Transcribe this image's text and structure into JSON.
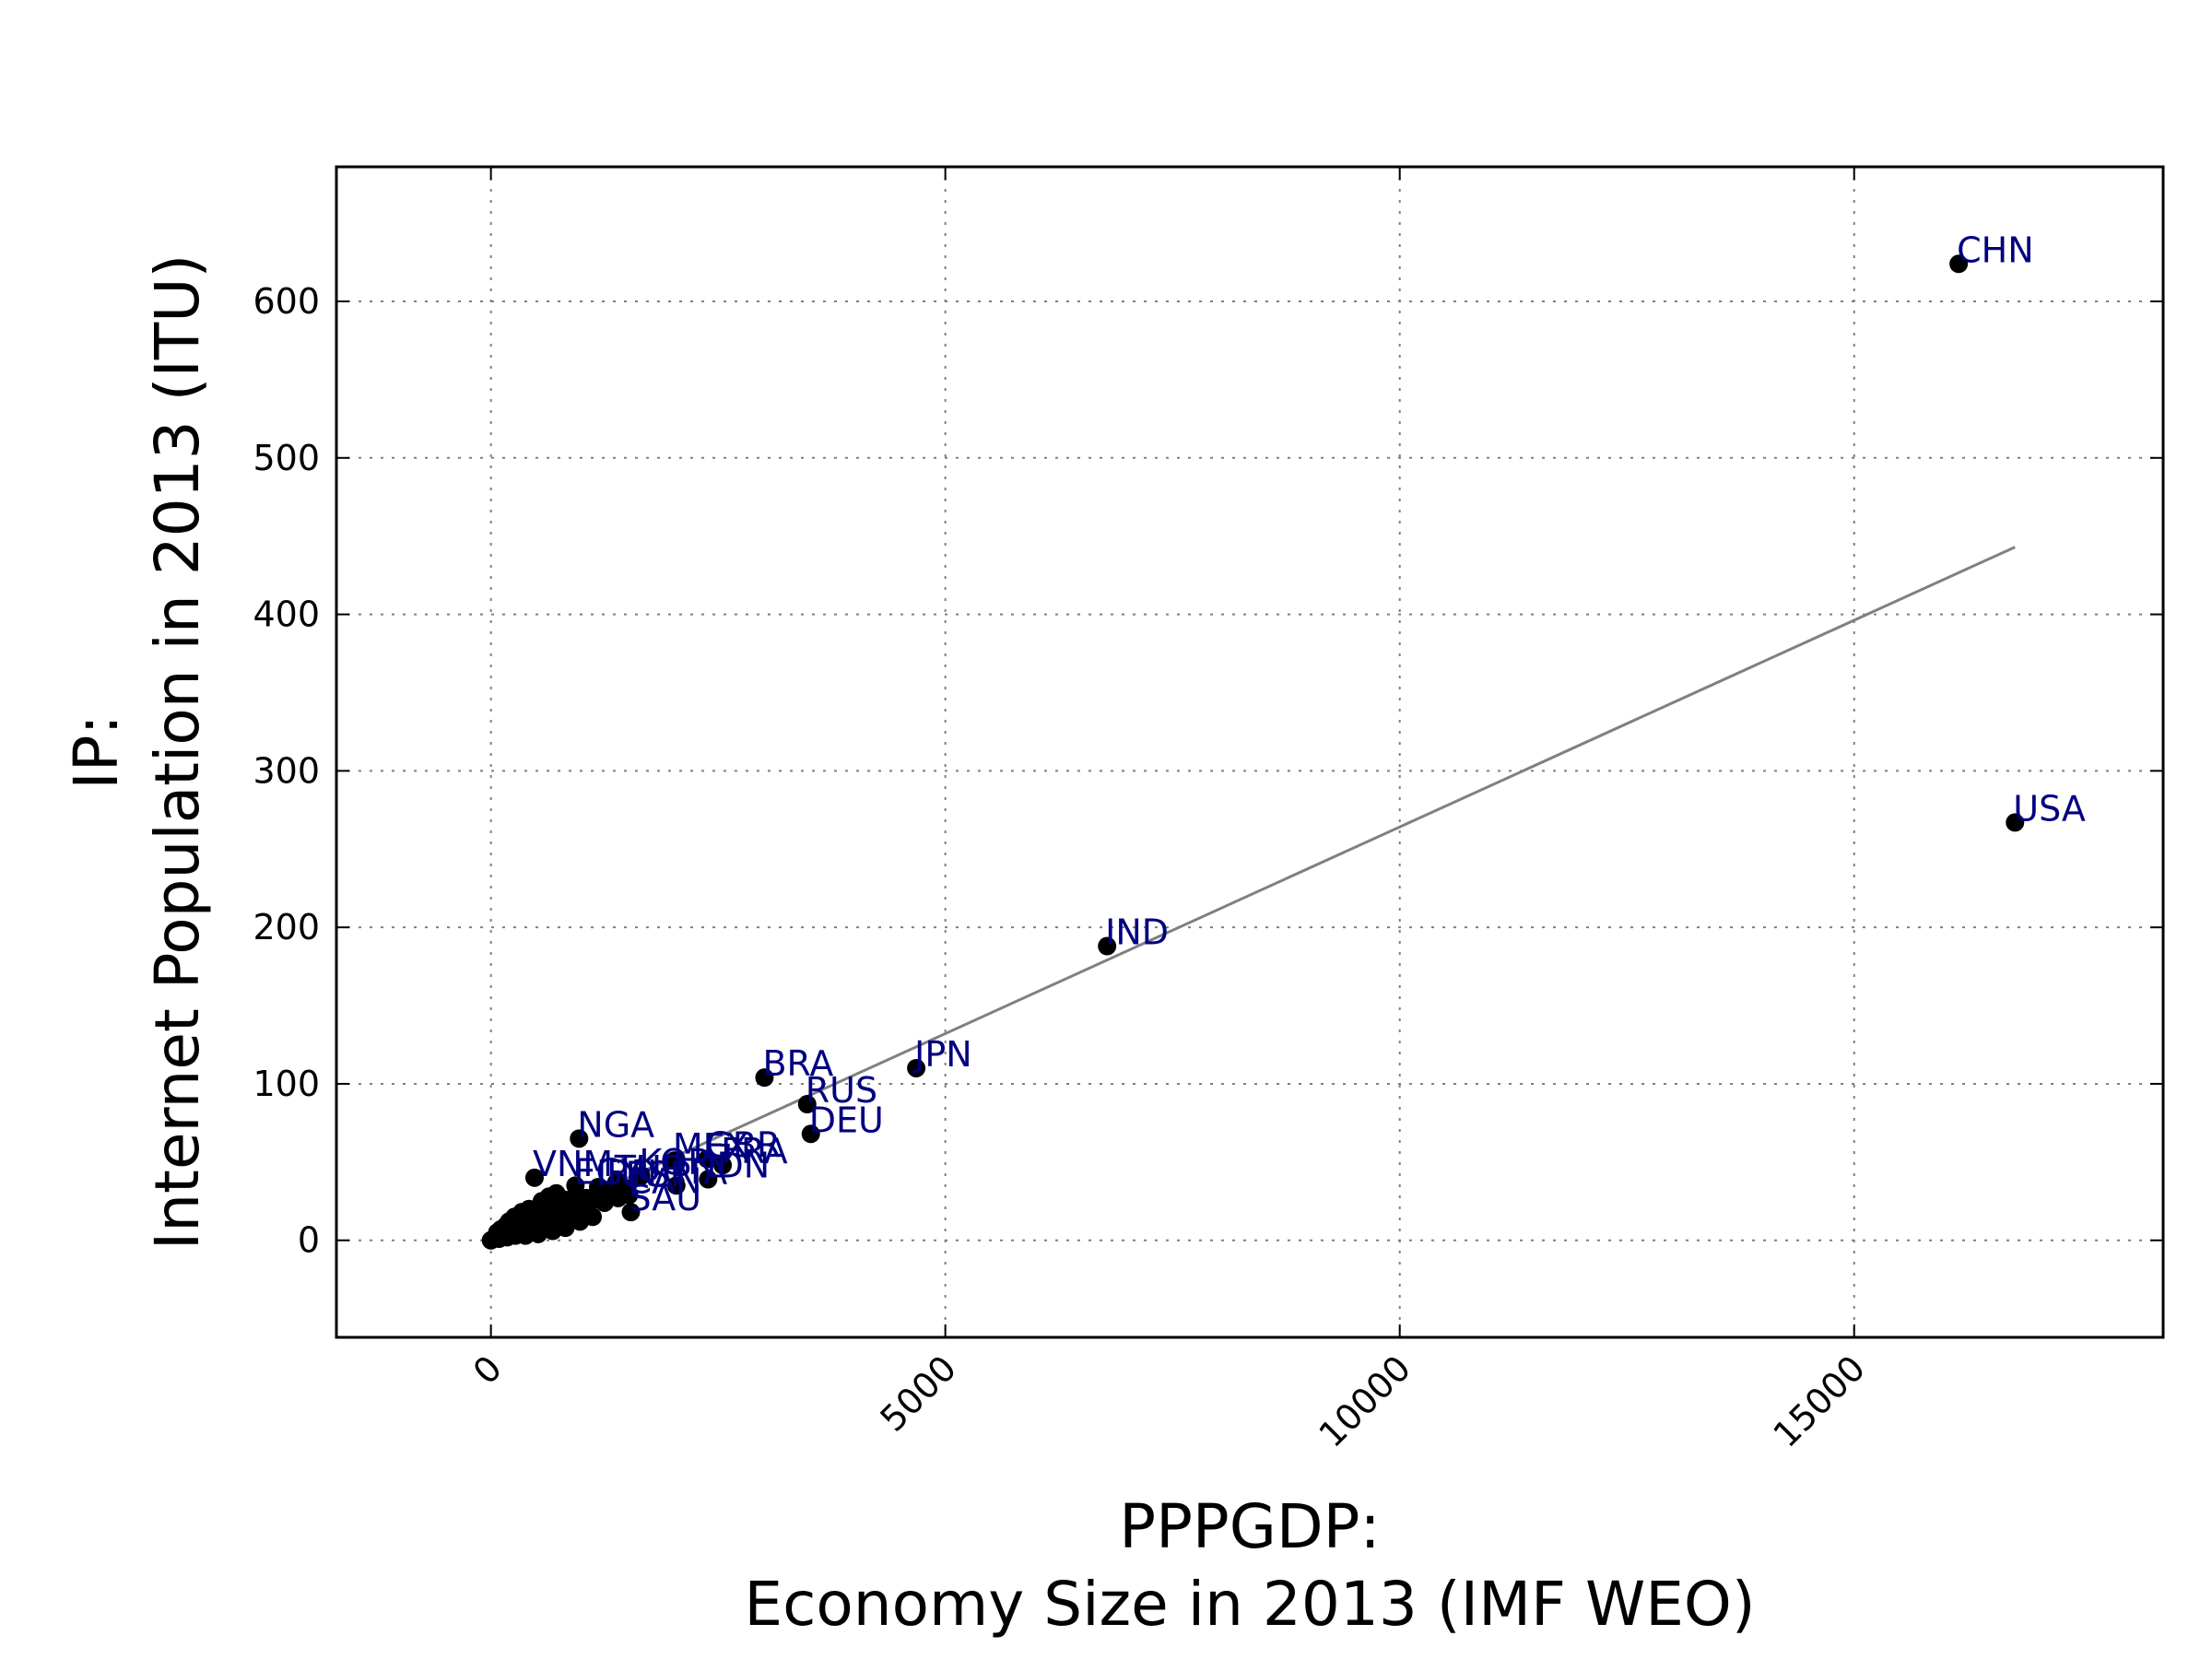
{
  "chart_data": {
    "type": "scatter",
    "title": "",
    "xlabel": [
      "PPPGDP:",
      "Economy Size in 2013 (IMF WEO)"
    ],
    "ylabel": [
      "IP:",
      "Internet Population in 2013 (ITU)"
    ],
    "xlim": [
      -1700,
      18400
    ],
    "ylim": [
      -62,
      686
    ],
    "x_ticks": [
      0,
      5000,
      10000,
      15000
    ],
    "y_ticks": [
      0,
      100,
      200,
      300,
      400,
      500,
      600
    ],
    "grid": true,
    "legend": "none",
    "colors": {
      "points": "#000000",
      "labels": "#000080",
      "trend": "#808080"
    },
    "labeled_points": [
      {
        "label": "CHN",
        "x": 16150,
        "y": 624
      },
      {
        "label": "USA",
        "x": 16770,
        "y": 267
      },
      {
        "label": "IND",
        "x": 6780,
        "y": 188
      },
      {
        "label": "JPN",
        "x": 4680,
        "y": 110
      },
      {
        "label": "BRA",
        "x": 3010,
        "y": 104
      },
      {
        "label": "RUS",
        "x": 3480,
        "y": 87
      },
      {
        "label": "DEU",
        "x": 3520,
        "y": 68
      },
      {
        "label": "NGA",
        "x": 970,
        "y": 65
      },
      {
        "label": "GBR",
        "x": 2380,
        "y": 52
      },
      {
        "label": "MEX",
        "x": 2020,
        "y": 51
      },
      {
        "label": "FRA",
        "x": 2550,
        "y": 48
      },
      {
        "label": "KOR",
        "x": 1650,
        "y": 41
      },
      {
        "label": "TUR",
        "x": 1380,
        "y": 37
      },
      {
        "label": "IDN",
        "x": 2390,
        "y": 39
      },
      {
        "label": "VNM",
        "x": 480,
        "y": 40
      },
      {
        "label": "EGY",
        "x": 930,
        "y": 35
      },
      {
        "label": "ITA",
        "x": 2040,
        "y": 35
      },
      {
        "label": "IRN",
        "x": 1180,
        "y": 34
      },
      {
        "label": "ESP",
        "x": 1500,
        "y": 33
      },
      {
        "label": "CAN",
        "x": 1520,
        "y": 29
      },
      {
        "label": "SAU",
        "x": 1540,
        "y": 18
      }
    ],
    "unlabeled_points": [
      {
        "x": 0,
        "y": 0
      },
      {
        "x": 30,
        "y": 1
      },
      {
        "x": 60,
        "y": 2
      },
      {
        "x": 90,
        "y": 1
      },
      {
        "x": 120,
        "y": 3
      },
      {
        "x": 150,
        "y": 4
      },
      {
        "x": 180,
        "y": 2
      },
      {
        "x": 210,
        "y": 5
      },
      {
        "x": 240,
        "y": 7
      },
      {
        "x": 270,
        "y": 3
      },
      {
        "x": 300,
        "y": 6
      },
      {
        "x": 330,
        "y": 9
      },
      {
        "x": 360,
        "y": 5
      },
      {
        "x": 390,
        "y": 11
      },
      {
        "x": 420,
        "y": 8
      },
      {
        "x": 450,
        "y": 13
      },
      {
        "x": 480,
        "y": 6
      },
      {
        "x": 510,
        "y": 15
      },
      {
        "x": 540,
        "y": 10
      },
      {
        "x": 570,
        "y": 17
      },
      {
        "x": 600,
        "y": 12
      },
      {
        "x": 630,
        "y": 19
      },
      {
        "x": 660,
        "y": 14
      },
      {
        "x": 690,
        "y": 21
      },
      {
        "x": 720,
        "y": 9
      },
      {
        "x": 750,
        "y": 23
      },
      {
        "x": 780,
        "y": 16
      },
      {
        "x": 810,
        "y": 26
      },
      {
        "x": 840,
        "y": 18
      },
      {
        "x": 870,
        "y": 24
      },
      {
        "x": 900,
        "y": 20
      },
      {
        "x": 950,
        "y": 28
      },
      {
        "x": 1000,
        "y": 22
      },
      {
        "x": 1050,
        "y": 27
      },
      {
        "x": 1100,
        "y": 25
      },
      {
        "x": 1200,
        "y": 30
      },
      {
        "x": 1250,
        "y": 24
      },
      {
        "x": 1300,
        "y": 31
      },
      {
        "x": 1400,
        "y": 27
      },
      {
        "x": 200,
        "y": 12
      },
      {
        "x": 260,
        "y": 15
      },
      {
        "x": 340,
        "y": 18
      },
      {
        "x": 420,
        "y": 20
      },
      {
        "x": 560,
        "y": 25
      },
      {
        "x": 640,
        "y": 28
      },
      {
        "x": 720,
        "y": 30
      },
      {
        "x": 160,
        "y": 9
      },
      {
        "x": 110,
        "y": 7
      },
      {
        "x": 70,
        "y": 5
      },
      {
        "x": 380,
        "y": 3
      },
      {
        "x": 520,
        "y": 4
      },
      {
        "x": 680,
        "y": 6
      },
      {
        "x": 820,
        "y": 8
      },
      {
        "x": 980,
        "y": 12
      },
      {
        "x": 1120,
        "y": 15
      }
    ],
    "trend_line": {
      "x": [
        0,
        16770
      ],
      "y": [
        0,
        443
      ]
    }
  }
}
